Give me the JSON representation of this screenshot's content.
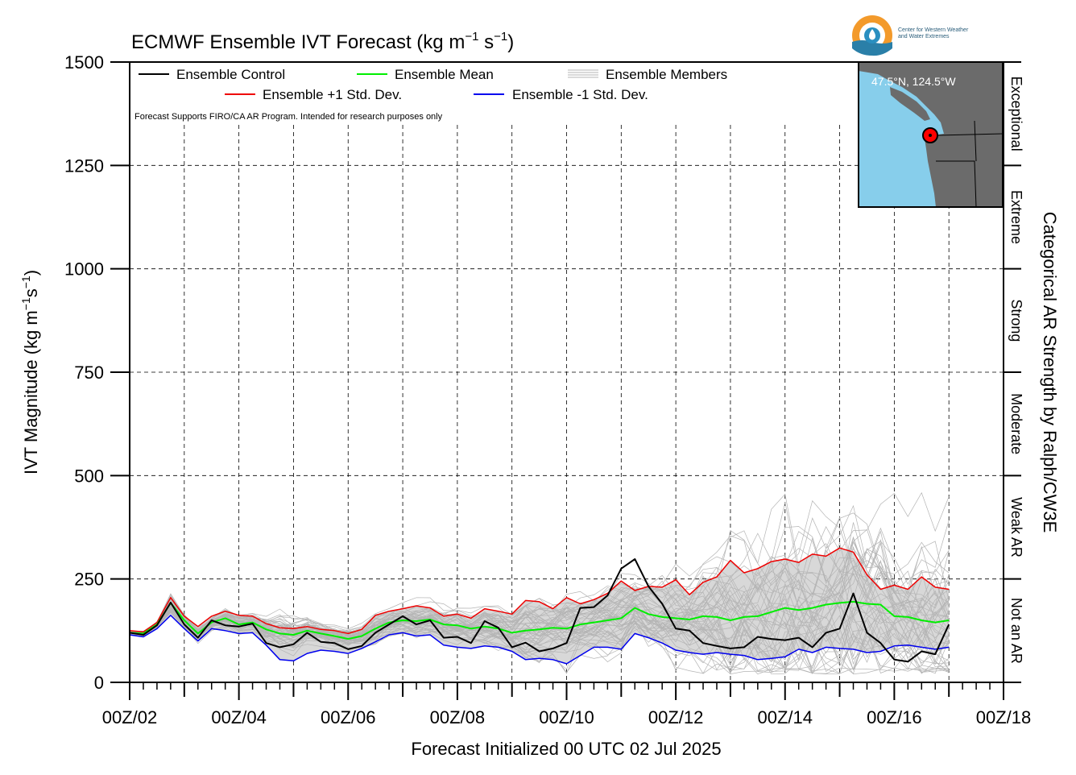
{
  "logo": {
    "line1": "Center for Western Weather",
    "line2": "and Water Extremes"
  },
  "inset_map": {
    "location_label": "47.5°N, 124.5°W",
    "land_color": "#6b6b6b",
    "water_color": "#87ceeb",
    "marker_color": "#ff0000"
  },
  "colors": {
    "control": "#000000",
    "mean": "#00ee00",
    "plus_std": "#ee0000",
    "minus_std": "#0000ee",
    "members": "#b4b4b4",
    "spread_fill": "#d8d8d8"
  },
  "chart_data": {
    "type": "line",
    "title": "ECMWF Ensemble IVT Forecast (kg m",
    "title_exp1": "−1",
    "title_mid": " s",
    "title_exp2": "−1",
    "title_end": ")",
    "ylabel": "IVT Magnitude (kg m",
    "ylabel_exp1": "−1",
    "ylabel_mid": "s",
    "ylabel_exp2": "−1",
    "ylabel_end": ")",
    "xlabel": "Forecast Initialized 00 UTC 02 Jul 2025",
    "right_label": "Categorical AR Strength by Ralph/CW3E",
    "disclaimer": "Forecast Supports FIRO/CA AR Program. Intended for research purposes only",
    "ylim": [
      0,
      1500
    ],
    "xlim": [
      0,
      384
    ],
    "x_units": "forecast hours from 00Z 02 Jul 2025",
    "yticks": [
      0,
      250,
      500,
      750,
      1000,
      1250,
      1500
    ],
    "ytick_labels": [
      "0",
      "250",
      "500",
      "750",
      "1000",
      "1250",
      "1500"
    ],
    "xtick_labels": [
      "00Z/02",
      "00Z/04",
      "00Z/06",
      "00Z/08",
      "00Z/10",
      "00Z/12",
      "00Z/14",
      "00Z/16",
      "00Z/18"
    ],
    "categories_right": [
      {
        "label": "Not an AR",
        "range": [
          0,
          250
        ]
      },
      {
        "label": "Weak AR",
        "range": [
          250,
          500
        ]
      },
      {
        "label": "Moderate",
        "range": [
          500,
          750
        ]
      },
      {
        "label": "Strong",
        "range": [
          750,
          1000
        ]
      },
      {
        "label": "Extreme",
        "range": [
          1000,
          1250
        ]
      },
      {
        "label": "Exceptional",
        "range": [
          1250,
          1500
        ]
      }
    ],
    "legend": {
      "control": "Ensemble Control",
      "mean": "Ensemble Mean",
      "members": "Ensemble Members",
      "plus_std": "Ensemble +1 Std. Dev.",
      "minus_std": "Ensemble -1 Std. Dev."
    },
    "grid": "dashed",
    "series": [
      {
        "name": "Ensemble Control",
        "x": [
          0,
          6,
          12,
          18,
          24,
          30,
          36,
          42,
          48,
          54,
          60,
          66,
          72,
          78,
          84,
          90,
          96,
          102,
          108,
          114,
          120,
          126,
          132,
          138,
          144,
          150,
          156,
          162,
          168,
          174,
          180,
          186,
          192,
          198,
          204,
          210,
          216,
          222,
          228,
          234,
          240,
          246,
          252,
          258,
          264,
          270,
          276,
          282,
          288,
          294,
          300,
          306,
          312,
          318,
          324,
          330,
          336,
          342,
          348,
          354,
          360
        ],
        "y": [
          120,
          115,
          138,
          193,
          140,
          108,
          150,
          138,
          135,
          142,
          95,
          85,
          92,
          120,
          98,
          95,
          80,
          88,
          120,
          140,
          160,
          140,
          150,
          108,
          110,
          95,
          148,
          132,
          85,
          96,
          75,
          82,
          95,
          180,
          182,
          210,
          275,
          298,
          232,
          190,
          130,
          125,
          95,
          88,
          82,
          85,
          110,
          105,
          102,
          108,
          85,
          120,
          130,
          215,
          120,
          95,
          55,
          50,
          75,
          68,
          140
        ]
      },
      {
        "name": "Ensemble Mean",
        "x": [
          0,
          6,
          12,
          18,
          24,
          30,
          36,
          42,
          48,
          54,
          60,
          66,
          72,
          78,
          84,
          90,
          96,
          102,
          108,
          114,
          120,
          126,
          132,
          138,
          144,
          150,
          156,
          162,
          168,
          174,
          180,
          186,
          192,
          198,
          204,
          210,
          216,
          222,
          228,
          234,
          240,
          246,
          252,
          258,
          264,
          270,
          276,
          282,
          288,
          294,
          300,
          306,
          312,
          318,
          324,
          330,
          336,
          342,
          348,
          354,
          360
        ],
        "y": [
          120,
          118,
          140,
          192,
          150,
          118,
          145,
          155,
          140,
          145,
          128,
          118,
          115,
          125,
          118,
          112,
          105,
          112,
          130,
          145,
          150,
          148,
          152,
          140,
          138,
          130,
          135,
          130,
          120,
          125,
          128,
          132,
          130,
          140,
          145,
          150,
          155,
          180,
          165,
          158,
          155,
          152,
          160,
          158,
          150,
          158,
          160,
          170,
          180,
          175,
          180,
          188,
          192,
          195,
          190,
          188,
          160,
          158,
          150,
          145,
          150
        ]
      },
      {
        "name": "Ensemble +1 Std. Dev.",
        "x": [
          0,
          6,
          12,
          18,
          24,
          30,
          36,
          42,
          48,
          54,
          60,
          66,
          72,
          78,
          84,
          90,
          96,
          102,
          108,
          114,
          120,
          126,
          132,
          138,
          144,
          150,
          156,
          162,
          168,
          174,
          180,
          186,
          192,
          198,
          204,
          210,
          216,
          222,
          228,
          234,
          240,
          246,
          252,
          258,
          264,
          270,
          276,
          282,
          288,
          294,
          300,
          306,
          312,
          318,
          324,
          330,
          336,
          342,
          348,
          354,
          360
        ],
        "y": [
          125,
          122,
          145,
          205,
          160,
          135,
          160,
          172,
          162,
          160,
          142,
          132,
          130,
          135,
          128,
          125,
          118,
          128,
          162,
          172,
          178,
          185,
          180,
          160,
          165,
          155,
          178,
          172,
          165,
          198,
          195,
          178,
          205,
          190,
          200,
          215,
          245,
          222,
          232,
          230,
          248,
          212,
          242,
          255,
          295,
          265,
          275,
          292,
          298,
          290,
          310,
          305,
          325,
          315,
          260,
          225,
          235,
          225,
          255,
          230,
          225
        ]
      },
      {
        "name": "Ensemble -1 Std. Dev.",
        "x": [
          0,
          6,
          12,
          18,
          24,
          30,
          36,
          42,
          48,
          54,
          60,
          66,
          72,
          78,
          84,
          90,
          96,
          102,
          108,
          114,
          120,
          126,
          132,
          138,
          144,
          150,
          156,
          162,
          168,
          174,
          180,
          186,
          192,
          198,
          204,
          210,
          216,
          222,
          228,
          234,
          240,
          246,
          252,
          258,
          264,
          270,
          276,
          282,
          288,
          294,
          300,
          306,
          312,
          318,
          324,
          330,
          336,
          342,
          348,
          354,
          360
        ],
        "y": [
          115,
          110,
          130,
          162,
          130,
          100,
          130,
          125,
          118,
          120,
          90,
          55,
          52,
          70,
          78,
          75,
          70,
          82,
          98,
          115,
          120,
          112,
          115,
          90,
          85,
          82,
          88,
          85,
          75,
          55,
          58,
          55,
          45,
          65,
          85,
          85,
          80,
          118,
          108,
          95,
          78,
          72,
          68,
          72,
          68,
          65,
          55,
          58,
          62,
          80,
          72,
          85,
          82,
          80,
          72,
          75,
          88,
          90,
          85,
          80,
          85
        ]
      }
    ]
  }
}
